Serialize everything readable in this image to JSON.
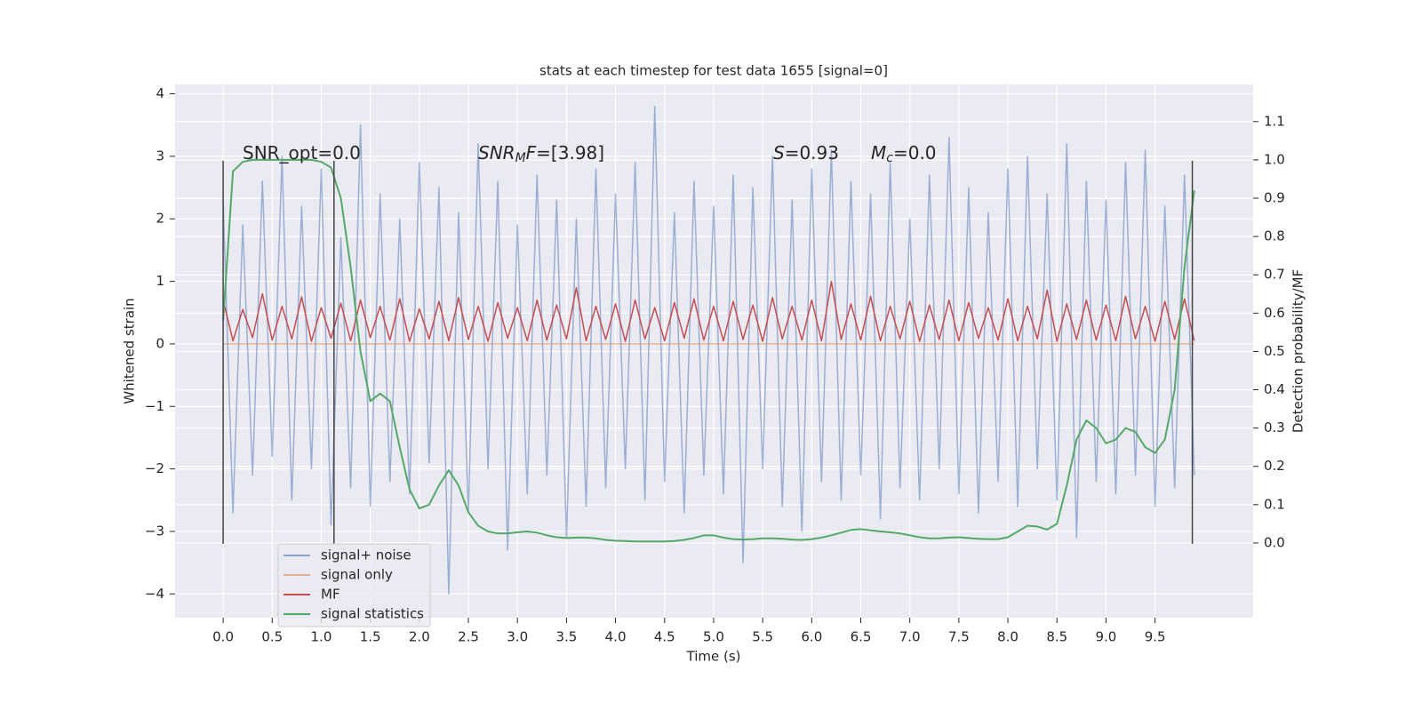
{
  "chart_data": {
    "type": "line",
    "title": "stats at each timestep for test data 1655 [signal=0]",
    "x_label": "Time (s)",
    "y_label": "Whitened strain",
    "y2_label": "Detection probability/MF",
    "annotations": [
      [
        "SNR_opt=0.0"
      ],
      [
        "SNR",
        "M",
        "F",
        "=[3.98]"
      ],
      [
        "S",
        "=0.93"
      ],
      [
        "M",
        "c",
        "=0.0"
      ]
    ],
    "x": [
      0,
      0.1,
      0.2,
      0.3,
      0.4,
      0.5,
      0.6,
      0.7,
      0.8,
      0.9,
      1,
      1.1,
      1.2,
      1.3,
      1.4,
      1.5,
      1.6,
      1.7,
      1.8,
      1.9,
      2,
      2.1,
      2.2,
      2.3,
      2.4,
      2.5,
      2.6,
      2.7,
      2.8,
      2.9,
      3,
      3.1,
      3.2,
      3.3,
      3.4,
      3.5,
      3.6,
      3.7,
      3.8,
      3.9,
      4,
      4.1,
      4.2,
      4.3,
      4.4,
      4.5,
      4.6,
      4.7,
      4.8,
      4.9,
      5,
      5.1,
      5.2,
      5.3,
      5.4,
      5.5,
      5.6,
      5.7,
      5.8,
      5.9,
      6,
      6.1,
      6.2,
      6.3,
      6.4,
      6.5,
      6.6,
      6.7,
      6.8,
      6.9,
      7,
      7.1,
      7.2,
      7.3,
      7.4,
      7.5,
      7.6,
      7.7,
      7.8,
      7.9,
      8,
      8.1,
      8.2,
      8.3,
      8.4,
      8.5,
      8.6,
      8.7,
      8.8,
      8.9,
      9,
      9.1,
      9.2,
      9.3,
      9.4,
      9.5,
      9.6,
      9.7,
      9.8,
      9.9
    ],
    "series": [
      {
        "name": "signal+ noise",
        "color": "#4c72b0",
        "values": [
          2.3,
          -2.7,
          1.9,
          -2.1,
          2.6,
          -1.8,
          3.0,
          -2.5,
          2.2,
          -2.0,
          2.8,
          -2.9,
          1.7,
          -2.3,
          3.5,
          -2.6,
          2.4,
          -2.2,
          2.0,
          -2.4,
          2.9,
          -1.9,
          2.5,
          -4.0,
          2.1,
          -2.7,
          3.2,
          -2.0,
          2.6,
          -3.3,
          1.9,
          -2.4,
          2.7,
          -2.1,
          2.3,
          -3.1,
          2.0,
          -2.6,
          2.8,
          -2.3,
          2.4,
          -2.0,
          2.9,
          -2.5,
          3.8,
          -2.2,
          2.1,
          -2.7,
          2.6,
          -2.1,
          2.2,
          -2.4,
          2.7,
          -3.5,
          2.5,
          -2.0,
          3.0,
          -2.6,
          2.3,
          -3.0,
          2.8,
          -2.2,
          3.1,
          -2.5,
          2.6,
          -2.1,
          2.4,
          -2.8,
          2.9,
          -2.3,
          2.0,
          -2.5,
          2.7,
          -2.0,
          3.3,
          -2.4,
          2.5,
          -2.7,
          2.1,
          -2.2,
          2.8,
          -2.6,
          3.0,
          -2.0,
          2.4,
          -2.5,
          3.2,
          -3.1,
          2.6,
          -2.2,
          2.3,
          -2.4,
          2.9,
          -2.1,
          3.1,
          -2.6,
          2.2,
          -2.3,
          2.7,
          -2.1
        ]
      },
      {
        "name": "signal only",
        "color": "#dd8452",
        "values": [
          0,
          0,
          0,
          0,
          0,
          0,
          0,
          0,
          0,
          0,
          0,
          0,
          0,
          0,
          0,
          0,
          0,
          0,
          0,
          0,
          0,
          0,
          0,
          0,
          0,
          0,
          0,
          0,
          0,
          0,
          0,
          0,
          0,
          0,
          0,
          0,
          0,
          0,
          0,
          0,
          0,
          0,
          0,
          0,
          0,
          0,
          0,
          0,
          0,
          0,
          0,
          0,
          0,
          0,
          0,
          0,
          0,
          0,
          0,
          0,
          0,
          0,
          0,
          0,
          0,
          0,
          0,
          0,
          0,
          0,
          0,
          0,
          0,
          0,
          0,
          0,
          0,
          0,
          0,
          0,
          0,
          0,
          0,
          0,
          0,
          0,
          0,
          0,
          0,
          0,
          0,
          0,
          0,
          0,
          0,
          0,
          0,
          0,
          0,
          0
        ]
      },
      {
        "name": "MF",
        "color": "#c44e52",
        "values": [
          0.7,
          0.05,
          0.55,
          0.1,
          0.8,
          0.06,
          0.6,
          0.08,
          0.75,
          0.04,
          0.58,
          0.09,
          0.65,
          0.05,
          0.7,
          0.1,
          0.6,
          0.06,
          0.72,
          0.04,
          0.56,
          0.08,
          0.68,
          0.05,
          0.74,
          0.07,
          0.6,
          0.04,
          0.66,
          0.09,
          0.58,
          0.05,
          0.7,
          0.06,
          0.62,
          0.08,
          0.9,
          0.05,
          0.6,
          0.07,
          0.64,
          0.04,
          0.7,
          0.08,
          0.58,
          0.05,
          0.66,
          0.09,
          0.72,
          0.06,
          0.6,
          0.05,
          0.68,
          0.07,
          0.62,
          0.04,
          0.74,
          0.08,
          0.6,
          0.06,
          0.7,
          0.05,
          1.0,
          0.07,
          0.64,
          0.06,
          0.76,
          0.05,
          0.6,
          0.08,
          0.68,
          0.04,
          0.62,
          0.07,
          0.7,
          0.05,
          0.66,
          0.09,
          0.58,
          0.06,
          0.72,
          0.05,
          0.6,
          0.08,
          0.86,
          0.04,
          0.64,
          0.07,
          0.7,
          0.06,
          0.62,
          0.05,
          0.76,
          0.08,
          0.6,
          0.04,
          0.68,
          0.07,
          0.72,
          0.05
        ]
      },
      {
        "name": "signal statistics",
        "color": "#55a868",
        "axis": "y2",
        "values": [
          0.58,
          0.97,
          0.995,
          1.0,
          1.0,
          1.0,
          1.0,
          1.0,
          1.0,
          1.0,
          0.995,
          0.98,
          0.9,
          0.72,
          0.5,
          0.37,
          0.39,
          0.37,
          0.25,
          0.14,
          0.09,
          0.1,
          0.15,
          0.19,
          0.15,
          0.08,
          0.045,
          0.03,
          0.025,
          0.025,
          0.028,
          0.03,
          0.027,
          0.02,
          0.015,
          0.013,
          0.014,
          0.014,
          0.012,
          0.008,
          0.006,
          0.005,
          0.004,
          0.004,
          0.004,
          0.004,
          0.005,
          0.008,
          0.013,
          0.02,
          0.02,
          0.014,
          0.01,
          0.009,
          0.01,
          0.012,
          0.012,
          0.011,
          0.009,
          0.008,
          0.01,
          0.014,
          0.02,
          0.027,
          0.034,
          0.036,
          0.033,
          0.03,
          0.028,
          0.025,
          0.02,
          0.015,
          0.012,
          0.012,
          0.014,
          0.015,
          0.013,
          0.011,
          0.01,
          0.01,
          0.015,
          0.03,
          0.045,
          0.043,
          0.035,
          0.05,
          0.15,
          0.27,
          0.32,
          0.3,
          0.26,
          0.27,
          0.3,
          0.29,
          0.25,
          0.235,
          0.27,
          0.4,
          0.72,
          0.92
        ]
      }
    ],
    "vlines": {
      "x": [
        0,
        1.13,
        9.88
      ],
      "ymin": -3.2,
      "ymax": 2.93,
      "color": "#444444"
    },
    "xlim": [
      -0.49,
      10.5
    ],
    "ylim": [
      -4.38,
      4.15
    ],
    "y2lim": [
      -0.195,
      1.197
    ],
    "xticks": [
      {
        "value": 0,
        "label": "0.0"
      },
      {
        "value": 0.5,
        "label": "0.5"
      },
      {
        "value": 1,
        "label": "1.0"
      },
      {
        "value": 1.5,
        "label": "1.5"
      },
      {
        "value": 2,
        "label": "2.0"
      },
      {
        "value": 2.5,
        "label": "2.5"
      },
      {
        "value": 3,
        "label": "3.0"
      },
      {
        "value": 3.5,
        "label": "3.5"
      },
      {
        "value": 4,
        "label": "4.0"
      },
      {
        "value": 4.5,
        "label": "4.5"
      },
      {
        "value": 5,
        "label": "5.0"
      },
      {
        "value": 5.5,
        "label": "5.5"
      },
      {
        "value": 6,
        "label": "6.0"
      },
      {
        "value": 6.5,
        "label": "6.5"
      },
      {
        "value": 7,
        "label": "7.0"
      },
      {
        "value": 7.5,
        "label": "7.5"
      },
      {
        "value": 8,
        "label": "8.0"
      },
      {
        "value": 8.5,
        "label": "8.5"
      },
      {
        "value": 9,
        "label": "9.0"
      },
      {
        "value": 9.5,
        "label": "9.5"
      }
    ],
    "yticks": [
      {
        "value": -4,
        "label": "−4"
      },
      {
        "value": -3,
        "label": "−3"
      },
      {
        "value": -2,
        "label": "−2"
      },
      {
        "value": -1,
        "label": "−1"
      },
      0,
      1,
      2,
      3,
      4
    ],
    "y2ticks": [
      {
        "value": 0,
        "label": "0.0"
      },
      {
        "value": 0.1,
        "label": "0.1"
      },
      {
        "value": 0.2,
        "label": "0.2"
      },
      {
        "value": 0.3,
        "label": "0.3"
      },
      {
        "value": 0.4,
        "label": "0.4"
      },
      {
        "value": 0.5,
        "label": "0.5"
      },
      {
        "value": 0.6,
        "label": "0.6"
      },
      {
        "value": 0.7,
        "label": "0.7"
      },
      {
        "value": 0.8,
        "label": "0.8"
      },
      {
        "value": 0.9,
        "label": "0.9"
      },
      {
        "value": 1,
        "label": "1.0"
      },
      {
        "value": 1.1,
        "label": "1.1"
      }
    ],
    "grid": true,
    "legend": "lower left"
  }
}
